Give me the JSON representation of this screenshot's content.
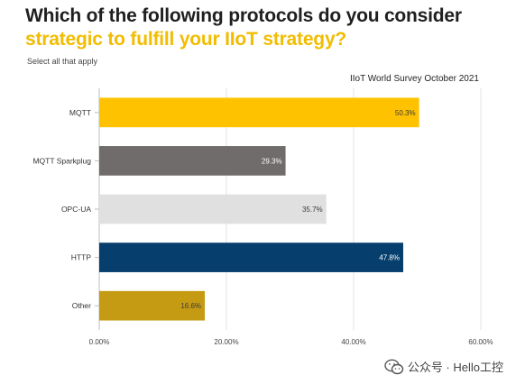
{
  "header": {
    "title_line1": "Which of the following protocols do you consider",
    "title_line2": "strategic to fulfill your IIoT strategy?",
    "subtitle": "Select all that apply",
    "source": "IIoT World Survey October 2021"
  },
  "watermark": {
    "text": "公众号 · Hello工控",
    "icon": "wechat-icon"
  },
  "chart_data": {
    "type": "bar",
    "orientation": "horizontal",
    "categories": [
      "MQTT",
      "MQTT Sparkplug",
      "OPC-UA",
      "HTTP",
      "Other"
    ],
    "values": [
      50.3,
      29.3,
      35.7,
      47.8,
      16.6
    ],
    "value_labels": [
      "50.3%",
      "29.3%",
      "35.7%",
      "47.8%",
      "16.6%"
    ],
    "colors": [
      "#fec200",
      "#6f6c6b",
      "#e0e0e0",
      "#063f6d",
      "#c69b14"
    ],
    "label_colors": [
      "#3a3a3a",
      "#ffffff",
      "#3a3a3a",
      "#ffffff",
      "#3a3a3a"
    ],
    "xlim": [
      0,
      60
    ],
    "xticks": [
      0,
      20,
      40,
      60
    ],
    "xtick_labels": [
      "0.00%",
      "20.00%",
      "40.00%",
      "60.00%"
    ],
    "grid": true,
    "xlabel": "",
    "ylabel": ""
  }
}
